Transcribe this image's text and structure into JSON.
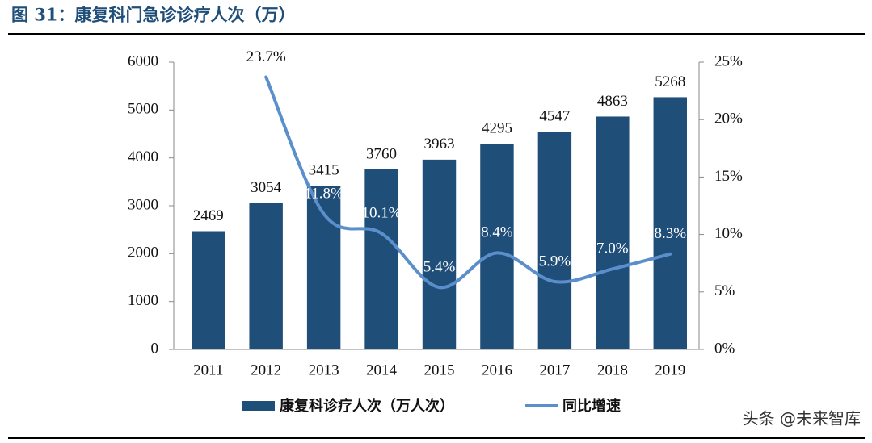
{
  "chart_data": {
    "type": "bar_line",
    "title": "图 31：康复科门急诊诊疗人次（万）",
    "categories": [
      "2011",
      "2012",
      "2013",
      "2014",
      "2015",
      "2016",
      "2017",
      "2018",
      "2019"
    ],
    "series": [
      {
        "name": "康复科诊疗人次（万人次）",
        "type": "bar",
        "color": "#1f4e79",
        "values": [
          2469,
          3054,
          3415,
          3760,
          3963,
          4295,
          4547,
          4863,
          5268
        ]
      },
      {
        "name": "同比增速",
        "type": "line",
        "axis": "y2",
        "color": "#5b8fcb",
        "values": [
          null,
          23.7,
          11.8,
          10.1,
          5.4,
          8.4,
          5.9,
          7.0,
          8.3
        ],
        "value_labels": [
          null,
          "23.7%",
          "11.8%",
          "10.1%",
          "5.4%",
          "8.4%",
          "5.9%",
          "7.0%",
          "8.3%"
        ]
      }
    ],
    "ylim": [
      0,
      6000
    ],
    "yticks": [
      0,
      1000,
      2000,
      3000,
      4000,
      5000,
      6000
    ],
    "y2lim": [
      0,
      25
    ],
    "y2ticks": [
      {
        "value": 0,
        "label": "0%"
      },
      {
        "value": 5,
        "label": "5%"
      },
      {
        "value": 10,
        "label": "10%"
      },
      {
        "value": 15,
        "label": "15%"
      },
      {
        "value": 20,
        "label": "20%"
      },
      {
        "value": 25,
        "label": "25%"
      }
    ],
    "watermark": "头条 @未来智库"
  }
}
